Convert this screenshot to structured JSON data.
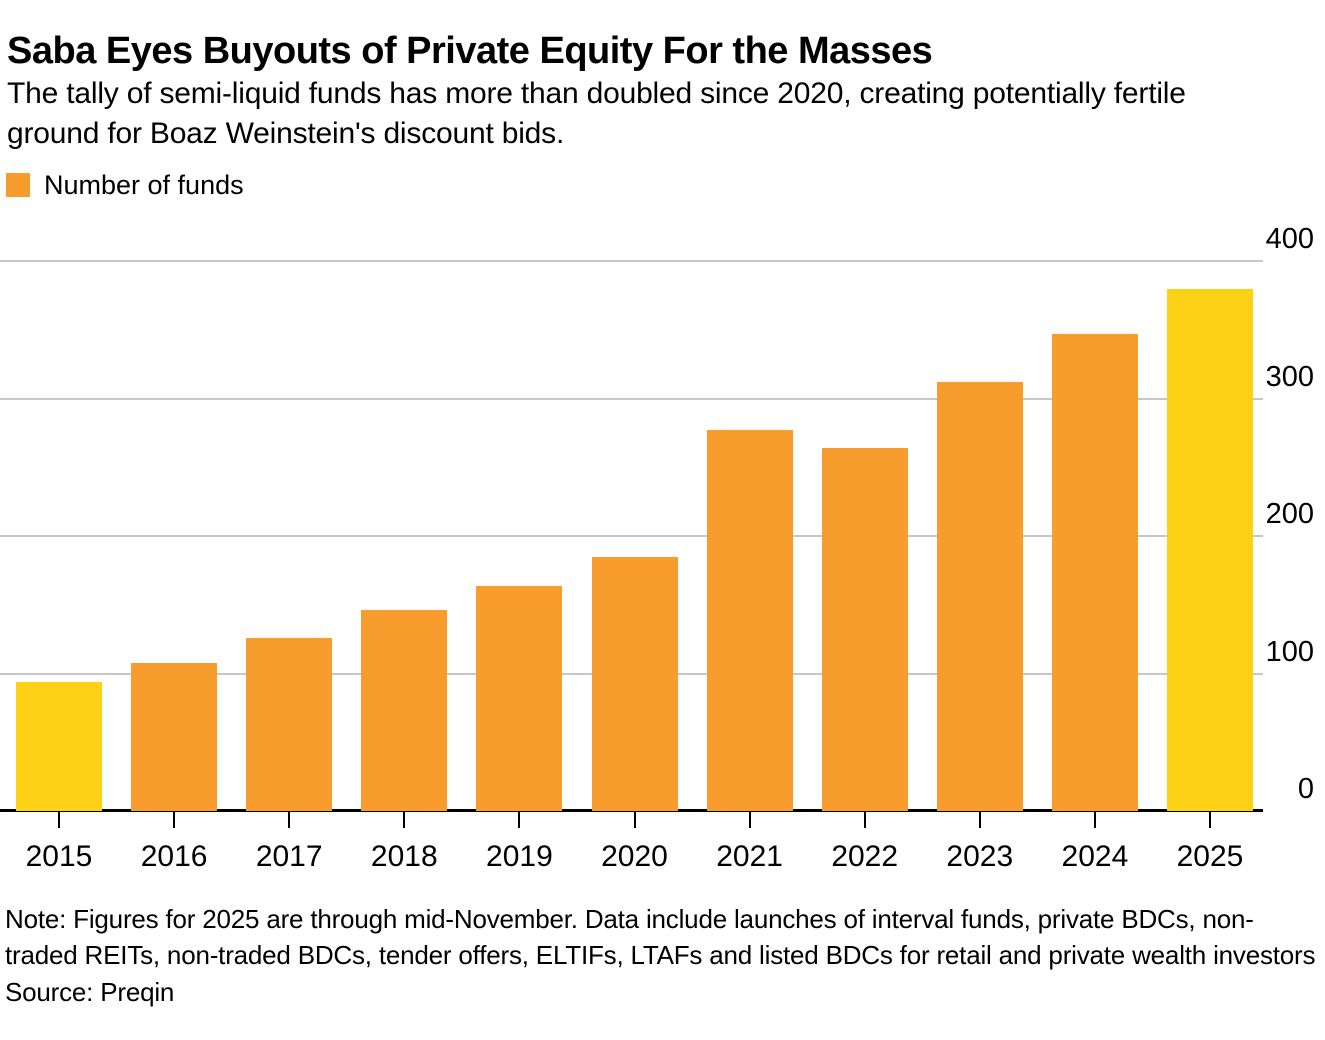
{
  "header": {
    "title": "Saba Eyes Buyouts of Private Equity For the Masses",
    "subtitle": "The tally of semi-liquid funds has more than doubled since 2020, creating potentially fertile ground for Boaz Weinstein's discount bids."
  },
  "legend": {
    "label": "Number of funds",
    "swatch_color": "#F89C2E"
  },
  "chart_data": {
    "type": "bar",
    "title": "Saba Eyes Buyouts of Private Equity For the Masses",
    "series_name": "Number of funds",
    "categories": [
      "2015",
      "2016",
      "2017",
      "2018",
      "2019",
      "2020",
      "2021",
      "2022",
      "2023",
      "2024",
      "2025"
    ],
    "values": [
      94,
      108,
      126,
      146,
      164,
      185,
      277,
      264,
      312,
      347,
      380
    ],
    "xlabel": "",
    "ylabel": "",
    "ylim": [
      0,
      400
    ],
    "yticks": [
      0,
      100,
      200,
      300,
      400
    ],
    "ytick_side": "right",
    "grid": "horizontal",
    "legend_position": "top-left",
    "bar_color_default": "#F89C2E",
    "bar_color_highlight": "#FCD116",
    "highlight_categories": [
      "2015",
      "2025"
    ],
    "gridline_color": "#C7C7C7",
    "axis_color": "#000000"
  },
  "footer": {
    "note": "Note: Figures for 2025 are through mid-November. Data include launches of interval funds, private BDCs, non-traded REITs, non-traded BDCs, tender offers, ELTIFs, LTAFs and listed BDCs for retail and private wealth investors",
    "source": "Source: Preqin"
  }
}
